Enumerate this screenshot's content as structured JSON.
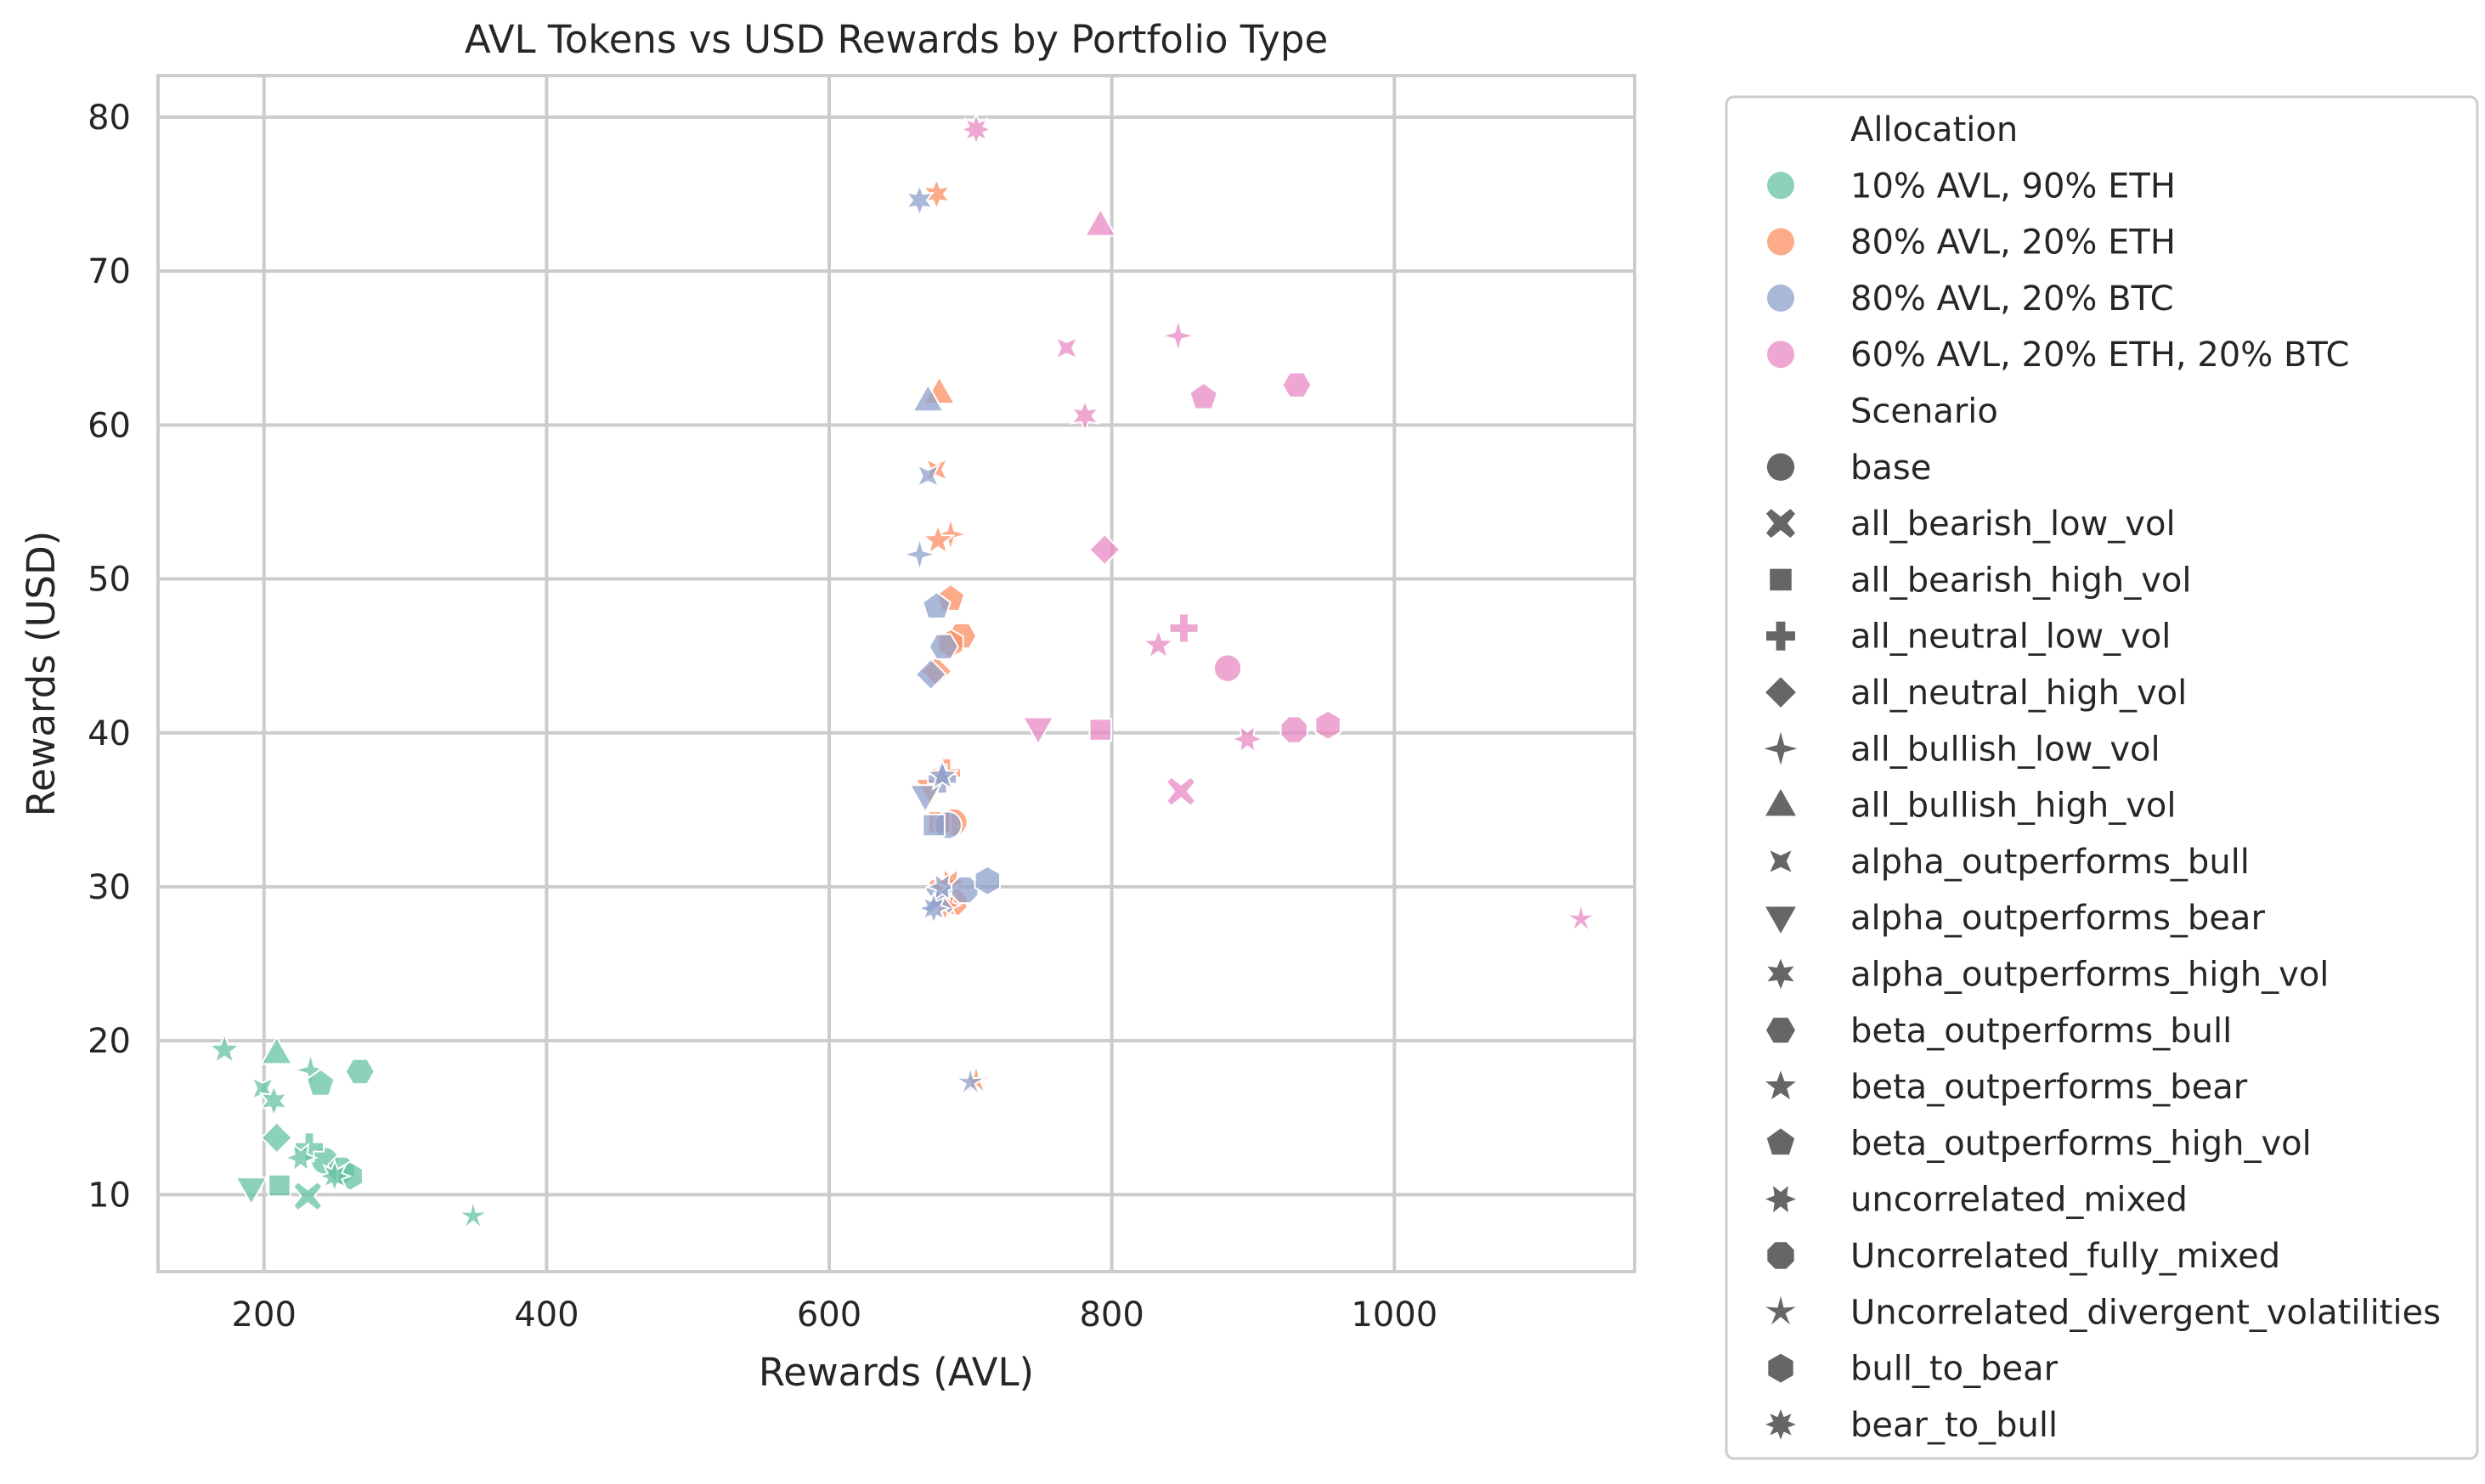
{
  "chart_data": {
    "type": "scatter",
    "title": "AVL Tokens vs USD Rewards by Portfolio Type",
    "xlabel": "Rewards (AVL)",
    "ylabel": "Rewards (USD)",
    "xlim": [
      125,
      1170
    ],
    "ylim": [
      5,
      82.7
    ],
    "xticks": [
      200,
      400,
      600,
      800,
      1000
    ],
    "yticks": [
      10,
      20,
      30,
      40,
      50,
      60,
      70,
      80
    ],
    "grid": true,
    "legend_position": "outside-right",
    "legend": {
      "hue_title": "Allocation",
      "hue_entries": [
        {
          "label": "10% AVL, 90% ETH",
          "color": "#66c2a5"
        },
        {
          "label": "80% AVL, 20% ETH",
          "color": "#fc8d62"
        },
        {
          "label": "80% AVL, 20% BTC",
          "color": "#8da0cb"
        },
        {
          "label": "60% AVL, 20% ETH, 20% BTC",
          "color": "#e78ac3"
        }
      ],
      "style_title": "Scenario",
      "style_entries": [
        {
          "label": "base",
          "marker": "circle"
        },
        {
          "label": "all_bearish_low_vol",
          "marker": "x"
        },
        {
          "label": "all_bearish_high_vol",
          "marker": "square"
        },
        {
          "label": "all_neutral_low_vol",
          "marker": "plus"
        },
        {
          "label": "all_neutral_high_vol",
          "marker": "diamond"
        },
        {
          "label": "all_bullish_low_vol",
          "marker": "star4"
        },
        {
          "label": "all_bullish_high_vol",
          "marker": "triangle-up"
        },
        {
          "label": "alpha_outperforms_bull",
          "marker": "star4-rot"
        },
        {
          "label": "alpha_outperforms_bear",
          "marker": "triangle-down"
        },
        {
          "label": "alpha_outperforms_high_vol",
          "marker": "star6"
        },
        {
          "label": "beta_outperforms_bull",
          "marker": "hexagon"
        },
        {
          "label": "beta_outperforms_bear",
          "marker": "star5"
        },
        {
          "label": "beta_outperforms_high_vol",
          "marker": "pentagon"
        },
        {
          "label": "uncorrelated_mixed",
          "marker": "star6-rot"
        },
        {
          "label": "Uncorrelated_fully_mixed",
          "marker": "octagon"
        },
        {
          "label": "Uncorrelated_divergent_volatilities",
          "marker": "star5-thin"
        },
        {
          "label": "bull_to_bear",
          "marker": "hexagon-flat"
        },
        {
          "label": "bear_to_bull",
          "marker": "star8"
        }
      ]
    },
    "series": [
      {
        "allocation": "10% AVL, 90% ETH",
        "color": "#66c2a5",
        "points": [
          {
            "scenario": "base",
            "x": 243,
            "y": 12.2
          },
          {
            "scenario": "all_bearish_low_vol",
            "x": 231,
            "y": 9.9
          },
          {
            "scenario": "all_bearish_high_vol",
            "x": 211,
            "y": 10.6
          },
          {
            "scenario": "all_neutral_low_vol",
            "x": 232,
            "y": 13.1
          },
          {
            "scenario": "all_neutral_high_vol",
            "x": 209,
            "y": 13.7
          },
          {
            "scenario": "all_bullish_low_vol",
            "x": 233,
            "y": 18.1
          },
          {
            "scenario": "all_bullish_high_vol",
            "x": 209,
            "y": 19.2
          },
          {
            "scenario": "alpha_outperforms_bull",
            "x": 199,
            "y": 16.9
          },
          {
            "scenario": "alpha_outperforms_bear",
            "x": 191,
            "y": 10.4
          },
          {
            "scenario": "alpha_outperforms_high_vol",
            "x": 207,
            "y": 16.1
          },
          {
            "scenario": "beta_outperforms_bull",
            "x": 268,
            "y": 18.0
          },
          {
            "scenario": "beta_outperforms_bear",
            "x": 172,
            "y": 19.4
          },
          {
            "scenario": "beta_outperforms_high_vol",
            "x": 240,
            "y": 17.2
          },
          {
            "scenario": "uncorrelated_mixed",
            "x": 226,
            "y": 12.4
          },
          {
            "scenario": "Uncorrelated_fully_mixed",
            "x": 255,
            "y": 11.6
          },
          {
            "scenario": "Uncorrelated_divergent_volatilities",
            "x": 348,
            "y": 8.6
          },
          {
            "scenario": "bull_to_bear",
            "x": 261,
            "y": 11.2
          },
          {
            "scenario": "bear_to_bull",
            "x": 250,
            "y": 11.2
          }
        ]
      },
      {
        "allocation": "80% AVL, 20% ETH",
        "color": "#fc8d62",
        "points": [
          {
            "scenario": "base",
            "x": 688,
            "y": 34.2
          },
          {
            "scenario": "all_bearish_low_vol",
            "x": 680,
            "y": 29.6
          },
          {
            "scenario": "all_bearish_high_vol",
            "x": 678,
            "y": 34.2
          },
          {
            "scenario": "all_neutral_low_vol",
            "x": 683,
            "y": 37.4
          },
          {
            "scenario": "all_neutral_high_vol",
            "x": 676,
            "y": 44.0
          },
          {
            "scenario": "all_bullish_low_vol",
            "x": 686,
            "y": 52.9
          },
          {
            "scenario": "all_bullish_high_vol",
            "x": 678,
            "y": 62.1
          },
          {
            "scenario": "alpha_outperforms_bull",
            "x": 676,
            "y": 57.1
          },
          {
            "scenario": "alpha_outperforms_bear",
            "x": 672,
            "y": 36.3
          },
          {
            "scenario": "alpha_outperforms_high_vol",
            "x": 676,
            "y": 75.0
          },
          {
            "scenario": "beta_outperforms_bull",
            "x": 694,
            "y": 46.3
          },
          {
            "scenario": "beta_outperforms_bear",
            "x": 677,
            "y": 52.5
          },
          {
            "scenario": "beta_outperforms_high_vol",
            "x": 686,
            "y": 48.7
          },
          {
            "scenario": "uncorrelated_mixed",
            "x": 686,
            "y": 30.3
          },
          {
            "scenario": "Uncorrelated_fully_mixed",
            "x": 688,
            "y": 29.0
          },
          {
            "scenario": "Uncorrelated_divergent_volatilities",
            "x": 704,
            "y": 17.4
          },
          {
            "scenario": "bull_to_bear",
            "x": 686,
            "y": 45.8
          },
          {
            "scenario": "bear_to_bull",
            "x": 682,
            "y": 28.8
          }
        ]
      },
      {
        "allocation": "80% AVL, 20% BTC",
        "color": "#8da0cb",
        "points": [
          {
            "scenario": "base",
            "x": 684,
            "y": 34.0
          },
          {
            "scenario": "all_bearish_low_vol",
            "x": 678,
            "y": 29.2
          },
          {
            "scenario": "all_bearish_high_vol",
            "x": 674,
            "y": 34.0
          },
          {
            "scenario": "all_neutral_low_vol",
            "x": 680,
            "y": 37.0
          },
          {
            "scenario": "all_neutral_high_vol",
            "x": 672,
            "y": 43.8
          },
          {
            "scenario": "all_bullish_low_vol",
            "x": 664,
            "y": 51.6
          },
          {
            "scenario": "all_bullish_high_vol",
            "x": 670,
            "y": 61.6
          },
          {
            "scenario": "alpha_outperforms_bull",
            "x": 670,
            "y": 56.7
          },
          {
            "scenario": "alpha_outperforms_bear",
            "x": 668,
            "y": 35.9
          },
          {
            "scenario": "alpha_outperforms_high_vol",
            "x": 664,
            "y": 74.6
          },
          {
            "scenario": "beta_outperforms_bull",
            "x": 681,
            "y": 45.6
          },
          {
            "scenario": "beta_outperforms_bear",
            "x": 680,
            "y": 37.2
          },
          {
            "scenario": "beta_outperforms_high_vol",
            "x": 676,
            "y": 48.2
          },
          {
            "scenario": "uncorrelated_mixed",
            "x": 680,
            "y": 30.0
          },
          {
            "scenario": "Uncorrelated_fully_mixed",
            "x": 696,
            "y": 29.8
          },
          {
            "scenario": "Uncorrelated_divergent_volatilities",
            "x": 700,
            "y": 17.3
          },
          {
            "scenario": "bull_to_bear",
            "x": 712,
            "y": 30.4
          },
          {
            "scenario": "bear_to_bull",
            "x": 674,
            "y": 28.6
          }
        ]
      },
      {
        "allocation": "60% AVL, 20% ETH, 20% BTC",
        "color": "#e78ac3",
        "points": [
          {
            "scenario": "base",
            "x": 882,
            "y": 44.2
          },
          {
            "scenario": "all_bearish_low_vol",
            "x": 849,
            "y": 36.2
          },
          {
            "scenario": "all_bearish_high_vol",
            "x": 792,
            "y": 40.2
          },
          {
            "scenario": "all_neutral_low_vol",
            "x": 851,
            "y": 46.8
          },
          {
            "scenario": "all_neutral_high_vol",
            "x": 795,
            "y": 51.9
          },
          {
            "scenario": "all_bullish_low_vol",
            "x": 847,
            "y": 65.8
          },
          {
            "scenario": "all_bullish_high_vol",
            "x": 792,
            "y": 73.0
          },
          {
            "scenario": "alpha_outperforms_bull",
            "x": 768,
            "y": 65.0
          },
          {
            "scenario": "alpha_outperforms_bear",
            "x": 748,
            "y": 40.3
          },
          {
            "scenario": "alpha_outperforms_high_vol",
            "x": 781,
            "y": 60.6
          },
          {
            "scenario": "beta_outperforms_bull",
            "x": 931,
            "y": 62.6
          },
          {
            "scenario": "beta_outperforms_bear",
            "x": 833,
            "y": 45.7
          },
          {
            "scenario": "beta_outperforms_high_vol",
            "x": 865,
            "y": 61.8
          },
          {
            "scenario": "uncorrelated_mixed",
            "x": 896,
            "y": 39.6
          },
          {
            "scenario": "Uncorrelated_fully_mixed",
            "x": 929,
            "y": 40.2
          },
          {
            "scenario": "Uncorrelated_divergent_volatilities",
            "x": 1132,
            "y": 27.9
          },
          {
            "scenario": "bull_to_bear",
            "x": 953,
            "y": 40.5
          },
          {
            "scenario": "bear_to_bull",
            "x": 704,
            "y": 79.2
          }
        ]
      }
    ]
  }
}
